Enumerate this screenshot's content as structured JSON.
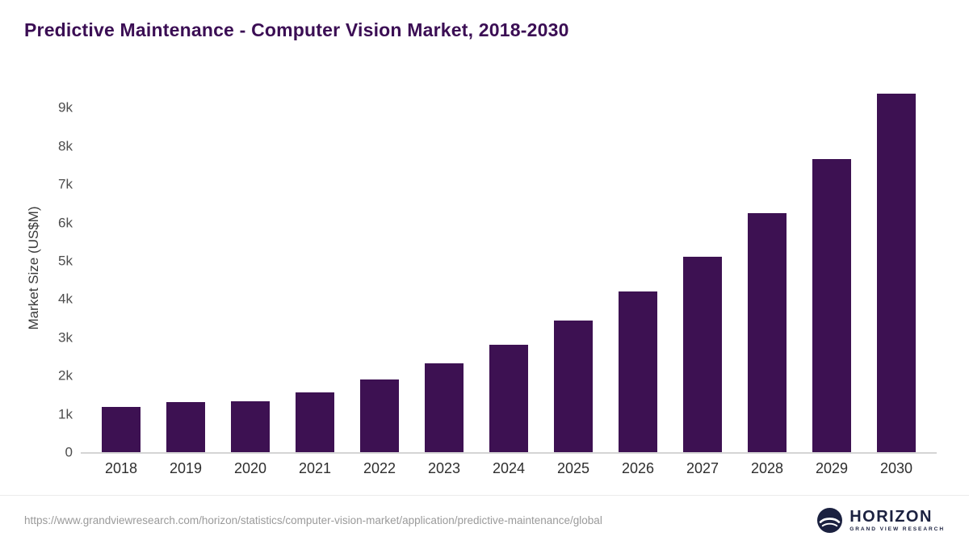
{
  "title": "Predictive Maintenance - Computer Vision Market, 2018-2030",
  "chart_data": {
    "type": "bar",
    "title": "Predictive Maintenance - Computer Vision Market, 2018-2030",
    "categories": [
      "2018",
      "2019",
      "2020",
      "2021",
      "2022",
      "2023",
      "2024",
      "2025",
      "2026",
      "2027",
      "2028",
      "2029",
      "2030"
    ],
    "values": [
      1190,
      1310,
      1330,
      1560,
      1900,
      2330,
      2800,
      3440,
      4200,
      5100,
      6250,
      7650,
      9370
    ],
    "xlabel": "",
    "ylabel": "Market Size (US$M)",
    "ylim": [
      0,
      9600
    ],
    "yticks": [
      0,
      1000,
      2000,
      3000,
      4000,
      5000,
      6000,
      7000,
      8000,
      9000
    ],
    "ytick_labels": [
      "0",
      "1k",
      "2k",
      "3k",
      "4k",
      "5k",
      "6k",
      "7k",
      "8k",
      "9k"
    ],
    "grid": false,
    "legend": false,
    "bar_color": "#3d1152"
  },
  "footer": {
    "source_url": "https://www.grandviewresearch.com/horizon/statistics/computer-vision-market/application/predictive-maintenance/global",
    "logo_text": "HORIZON",
    "logo_subtext": "GRAND VIEW RESEARCH"
  },
  "colors": {
    "bar": "#3d1152",
    "title": "#3b0e54",
    "axis_text": "#4d4d4d",
    "footer_text": "#9a9a9a",
    "logo": "#1b2140"
  }
}
